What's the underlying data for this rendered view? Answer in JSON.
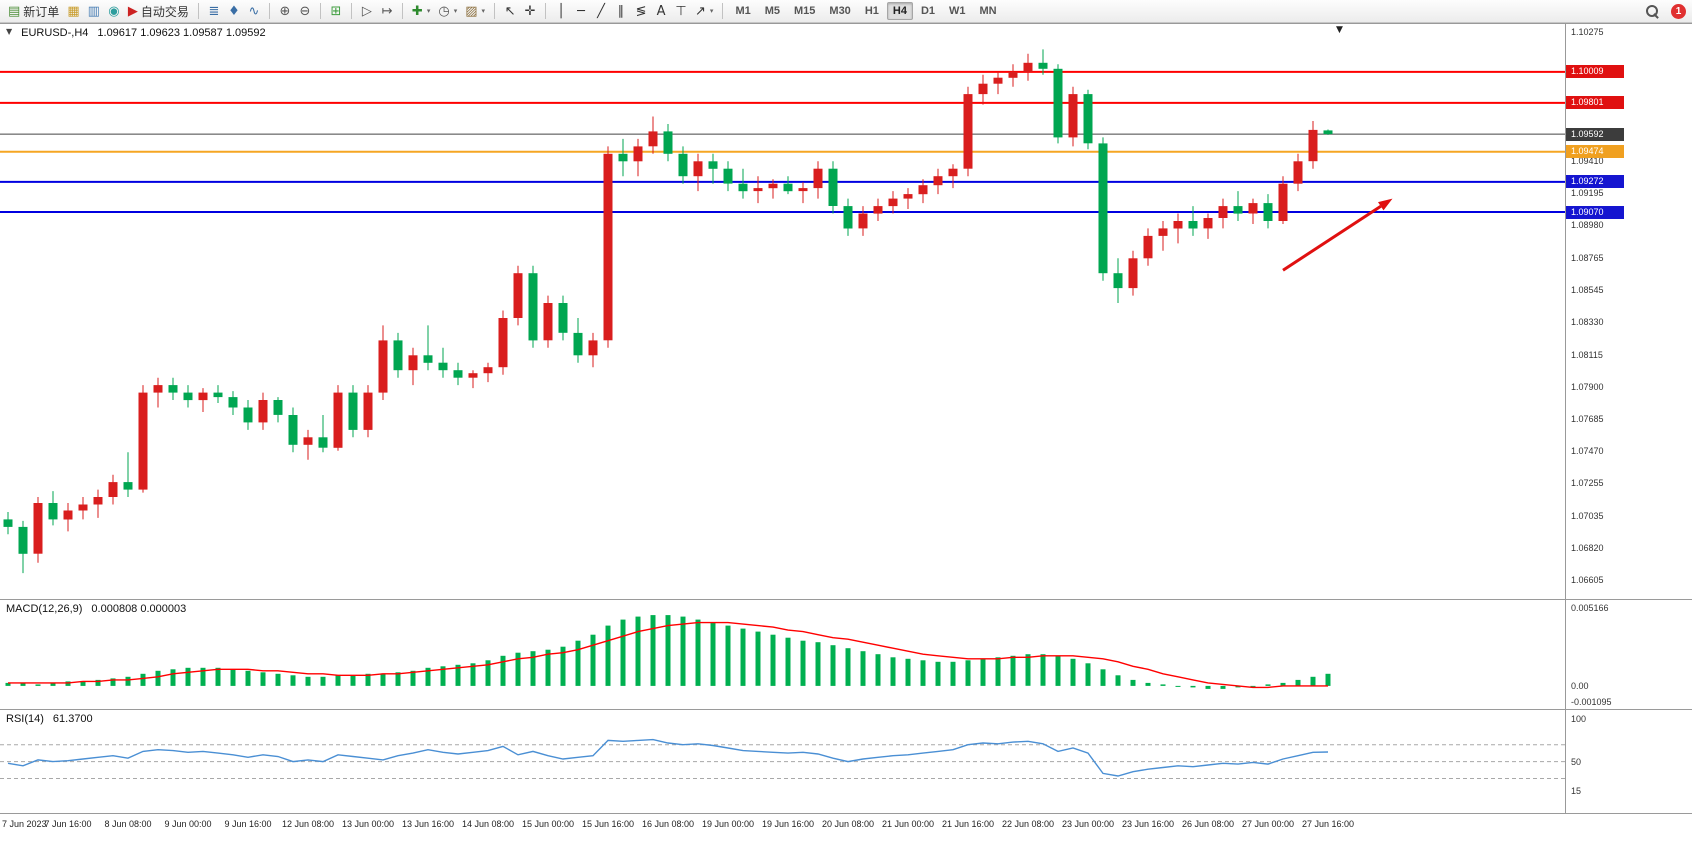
{
  "toolbar": {
    "caret_glyph": "▾",
    "notification_badge": "1",
    "timeframes": [
      "M1",
      "M5",
      "M15",
      "M30",
      "H1",
      "H4",
      "D1",
      "W1",
      "MN"
    ],
    "active_timeframe": "H4",
    "groups": [
      {
        "items": [
          {
            "name": "new-order-button",
            "glyph": "▤",
            "glyph_color": "#4e8f3a",
            "label": "新订单"
          },
          {
            "name": "chart-window-icon",
            "glyph": "▦",
            "glyph_color": "#c89b28"
          },
          {
            "name": "market-depth-icon",
            "glyph": "▥",
            "glyph_color": "#4a7fb5"
          },
          {
            "name": "community-icon",
            "glyph": "◉",
            "glyph_color": "#2e9e9e"
          },
          {
            "name": "auto-trading-button",
            "glyph": "▶",
            "glyph_color": "#cc2222",
            "label": "自动交易"
          }
        ]
      },
      {
        "items": [
          {
            "name": "bar-chart-icon",
            "glyph": "≣",
            "glyph_color": "#3a6ea5"
          },
          {
            "name": "candlestick-chart-icon",
            "glyph": "♦",
            "glyph_color": "#3a6ea5"
          },
          {
            "name": "line-chart-icon",
            "glyph": "∿",
            "glyph_color": "#3a6ea5"
          }
        ]
      },
      {
        "items": [
          {
            "name": "zoom-in-icon",
            "glyph": "⊕",
            "glyph_color": "#555555"
          },
          {
            "name": "zoom-out-icon",
            "glyph": "⊖",
            "glyph_color": "#555555"
          }
        ]
      },
      {
        "items": [
          {
            "name": "tile-windows-icon",
            "glyph": "⊞",
            "glyph_color": "#3f9e3f"
          }
        ]
      },
      {
        "items": [
          {
            "name": "auto-scroll-icon",
            "glyph": "▷",
            "glyph_color": "#555555"
          },
          {
            "name": "chart-shift-icon",
            "glyph": "↦",
            "glyph_color": "#555555"
          }
        ]
      },
      {
        "items": [
          {
            "name": "indicators-icon",
            "glyph": "✚",
            "glyph_color": "#2e8b2e",
            "caret": true
          },
          {
            "name": "periods-icon",
            "glyph": "◷",
            "glyph_color": "#555555",
            "caret": true
          },
          {
            "name": "templates-icon",
            "glyph": "▨",
            "glyph_color": "#8a6d3b",
            "caret": true
          }
        ]
      },
      {
        "items": [
          {
            "name": "cursor-icon",
            "glyph": "↖",
            "glyph_color": "#333333"
          },
          {
            "name": "crosshair-icon",
            "glyph": "✛",
            "glyph_color": "#333333"
          }
        ]
      },
      {
        "items": [
          {
            "name": "vertical-line-icon",
            "glyph": "│",
            "glyph_color": "#333333"
          },
          {
            "name": "horizontal-line-icon",
            "glyph": "─",
            "glyph_color": "#333333"
          },
          {
            "name": "trendline-icon",
            "glyph": "╱",
            "glyph_color": "#333333"
          },
          {
            "name": "channel-icon",
            "glyph": "∥",
            "glyph_color": "#333333"
          },
          {
            "name": "fibonacci-icon",
            "glyph": "≶",
            "glyph_color": "#333333"
          },
          {
            "name": "text-icon",
            "glyph": "A",
            "glyph_color": "#333333"
          },
          {
            "name": "label-icon",
            "glyph": "⊤",
            "glyph_color": "#333333"
          },
          {
            "name": "shapes-icon",
            "glyph": "↗",
            "glyph_color": "#333333",
            "caret": true
          }
        ]
      }
    ]
  },
  "chart_header": {
    "collapse_glyph": "▼",
    "symbol_text": "EURUSD-,H4",
    "ohlc_text": "1.09617 1.09623 1.09587 1.09592",
    "shift_marker": "▼"
  },
  "chart_data": {
    "type": "candlestick",
    "symbol": "EURUSD-",
    "timeframe": "H4",
    "colors": {
      "bull": "#d91e1e",
      "bear": "#00a651",
      "macd_histogram": "#00b050",
      "macd_signal": "#ff0000",
      "rsi_line": "#4a8fd4"
    },
    "price_axis": {
      "view_max": 1.1033,
      "view_min": 1.0647,
      "ticks": [
        "1.10275",
        "1.09410",
        "1.09195",
        "1.08980",
        "1.08765",
        "1.08545",
        "1.08330",
        "1.08115",
        "1.07900",
        "1.07685",
        "1.07470",
        "1.07255",
        "1.07035",
        "1.06820",
        "1.06605"
      ]
    },
    "price_tags": [
      {
        "text": "1.10009",
        "color": "#e01010"
      },
      {
        "text": "1.09801",
        "color": "#e01010"
      },
      {
        "text": "1.09592",
        "color": "#3c3c3c"
      },
      {
        "text": "1.09474",
        "color": "#f0a020"
      },
      {
        "text": "1.09272",
        "color": "#1515d0"
      },
      {
        "text": "1.09070",
        "color": "#1515d0"
      }
    ],
    "hlines": [
      {
        "price": 1.10009,
        "color": "#ff0000",
        "width": 2
      },
      {
        "price": 1.09801,
        "color": "#ff0000",
        "width": 2
      },
      {
        "price": 1.09592,
        "color": "#444444",
        "width": 1
      },
      {
        "price": 1.09474,
        "color": "#f5a623",
        "width": 2
      },
      {
        "price": 1.09272,
        "color": "#0000e0",
        "width": 2
      },
      {
        "price": 1.0907,
        "color": "#0000e0",
        "width": 2
      }
    ],
    "arrow": {
      "from_index": 85,
      "from_price": 1.0868,
      "to_index": 92.3,
      "to_price": 1.0916,
      "color": "#e01010",
      "width": 3
    },
    "x_labels": [
      "7 Jun 2023",
      "7 Jun 16:00",
      "8 Jun 08:00",
      "9 Jun 00:00",
      "9 Jun 16:00",
      "12 Jun 08:00",
      "13 Jun 00:00",
      "13 Jun 16:00",
      "14 Jun 08:00",
      "15 Jun 00:00",
      "15 Jun 16:00",
      "16 Jun 08:00",
      "19 Jun 00:00",
      "19 Jun 16:00",
      "20 Jun 08:00",
      "21 Jun 00:00",
      "21 Jun 16:00",
      "22 Jun 08:00",
      "23 Jun 00:00",
      "23 Jun 16:00",
      "26 Jun 08:00",
      "27 Jun 00:00",
      "27 Jun 16:00"
    ],
    "candles": [
      [
        1.0701,
        1.0706,
        1.0691,
        1.0696
      ],
      [
        1.0696,
        1.07,
        1.0665,
        1.0678
      ],
      [
        1.0678,
        1.0716,
        1.0672,
        1.0712
      ],
      [
        1.0712,
        1.072,
        1.0697,
        1.0701
      ],
      [
        1.0701,
        1.0712,
        1.0693,
        1.0707
      ],
      [
        1.0707,
        1.0716,
        1.0701,
        1.0711
      ],
      [
        1.0711,
        1.0721,
        1.0702,
        1.0716
      ],
      [
        1.0716,
        1.0731,
        1.0711,
        1.0726
      ],
      [
        1.0726,
        1.0746,
        1.0716,
        1.0721
      ],
      [
        1.0721,
        1.0791,
        1.0719,
        1.0786
      ],
      [
        1.0786,
        1.0796,
        1.0776,
        1.0791
      ],
      [
        1.0791,
        1.0796,
        1.0781,
        1.0786
      ],
      [
        1.0786,
        1.0791,
        1.0776,
        1.0781
      ],
      [
        1.0781,
        1.0789,
        1.0773,
        1.0786
      ],
      [
        1.0786,
        1.0791,
        1.0779,
        1.0783
      ],
      [
        1.0783,
        1.0787,
        1.0771,
        1.0776
      ],
      [
        1.0776,
        1.0781,
        1.0761,
        1.0766
      ],
      [
        1.0766,
        1.0786,
        1.0761,
        1.0781
      ],
      [
        1.0781,
        1.0783,
        1.0766,
        1.0771
      ],
      [
        1.0771,
        1.0776,
        1.0746,
        1.0751
      ],
      [
        1.0751,
        1.0761,
        1.0741,
        1.0756
      ],
      [
        1.0756,
        1.0771,
        1.0746,
        1.0749
      ],
      [
        1.0749,
        1.0791,
        1.0747,
        1.0786
      ],
      [
        1.0786,
        1.0791,
        1.0756,
        1.0761
      ],
      [
        1.0761,
        1.0791,
        1.0756,
        1.0786
      ],
      [
        1.0786,
        1.0831,
        1.0781,
        1.0821
      ],
      [
        1.0821,
        1.0826,
        1.0796,
        1.0801
      ],
      [
        1.0801,
        1.0816,
        1.0791,
        1.0811
      ],
      [
        1.0811,
        1.0831,
        1.0801,
        1.0806
      ],
      [
        1.0806,
        1.0816,
        1.0796,
        1.0801
      ],
      [
        1.0801,
        1.0806,
        1.0791,
        1.0796
      ],
      [
        1.0796,
        1.0801,
        1.0789,
        1.0799
      ],
      [
        1.0799,
        1.0806,
        1.0793,
        1.0803
      ],
      [
        1.0803,
        1.0841,
        1.0798,
        1.0836
      ],
      [
        1.0836,
        1.0871,
        1.0831,
        1.0866
      ],
      [
        1.0866,
        1.0871,
        1.0816,
        1.0821
      ],
      [
        1.0821,
        1.0851,
        1.0816,
        1.0846
      ],
      [
        1.0846,
        1.0851,
        1.0821,
        1.0826
      ],
      [
        1.0826,
        1.0836,
        1.0806,
        1.0811
      ],
      [
        1.0811,
        1.0826,
        1.0803,
        1.0821
      ],
      [
        1.0821,
        1.0951,
        1.0816,
        1.0946
      ],
      [
        1.0946,
        1.0956,
        1.0931,
        1.0941
      ],
      [
        1.0941,
        1.0956,
        1.0931,
        1.0951
      ],
      [
        1.0951,
        1.0971,
        1.0946,
        1.0961
      ],
      [
        1.0961,
        1.0966,
        1.0941,
        1.0946
      ],
      [
        1.0946,
        1.0951,
        1.0926,
        1.0931
      ],
      [
        1.0931,
        1.0946,
        1.0921,
        1.0941
      ],
      [
        1.0941,
        1.0946,
        1.0926,
        1.0936
      ],
      [
        1.0936,
        1.0941,
        1.0921,
        1.0926
      ],
      [
        1.0926,
        1.0936,
        1.0916,
        1.0921
      ],
      [
        1.0921,
        1.0931,
        1.0913,
        1.0923
      ],
      [
        1.0923,
        1.0929,
        1.0916,
        1.0926
      ],
      [
        1.0926,
        1.0931,
        1.0919,
        1.0921
      ],
      [
        1.0921,
        1.0927,
        1.0913,
        1.0923
      ],
      [
        1.0923,
        1.0941,
        1.0916,
        1.0936
      ],
      [
        1.0936,
        1.0941,
        1.0906,
        1.0911
      ],
      [
        1.0911,
        1.0916,
        1.0891,
        1.0896
      ],
      [
        1.0896,
        1.0911,
        1.0891,
        1.0906
      ],
      [
        1.0906,
        1.0916,
        1.0901,
        1.0911
      ],
      [
        1.0911,
        1.0921,
        1.0906,
        1.0916
      ],
      [
        1.0916,
        1.0923,
        1.0909,
        1.0919
      ],
      [
        1.0919,
        1.0929,
        1.0913,
        1.0925
      ],
      [
        1.0925,
        1.0936,
        1.0919,
        1.0931
      ],
      [
        1.0931,
        1.0939,
        1.0923,
        1.0936
      ],
      [
        1.0936,
        1.0991,
        1.0931,
        1.0986
      ],
      [
        1.0986,
        1.0999,
        1.0979,
        1.0993
      ],
      [
        1.0993,
        1.1001,
        1.0986,
        1.0997
      ],
      [
        1.0997,
        1.1006,
        1.0991,
        1.1001
      ],
      [
        1.1001,
        1.1013,
        1.0995,
        1.1007
      ],
      [
        1.1007,
        1.1016,
        1.0999,
        1.1003
      ],
      [
        1.1003,
        1.1006,
        1.0953,
        1.0957
      ],
      [
        1.0957,
        1.0991,
        1.0951,
        1.0986
      ],
      [
        1.0986,
        1.0989,
        1.0949,
        1.0953
      ],
      [
        1.0953,
        1.0957,
        1.0861,
        1.0866
      ],
      [
        1.0866,
        1.0876,
        1.0846,
        1.0856
      ],
      [
        1.0856,
        1.0881,
        1.0851,
        1.0876
      ],
      [
        1.0876,
        1.0896,
        1.0871,
        1.0891
      ],
      [
        1.0891,
        1.0901,
        1.0881,
        1.0896
      ],
      [
        1.0896,
        1.0906,
        1.0886,
        1.0901
      ],
      [
        1.0901,
        1.0911,
        1.0891,
        1.0896
      ],
      [
        1.0896,
        1.0906,
        1.0889,
        1.0903
      ],
      [
        1.0903,
        1.0916,
        1.0896,
        1.0911
      ],
      [
        1.0911,
        1.0921,
        1.0901,
        1.0906
      ],
      [
        1.0906,
        1.0916,
        1.0899,
        1.0913
      ],
      [
        1.0913,
        1.0919,
        1.0896,
        1.0901
      ],
      [
        1.0901,
        1.0931,
        1.0899,
        1.0926
      ],
      [
        1.0926,
        1.0946,
        1.0921,
        1.0941
      ],
      [
        1.0941,
        1.0968,
        1.0936,
        1.0962
      ],
      [
        1.09617,
        1.09623,
        1.09587,
        1.09592
      ]
    ],
    "macd": {
      "label": "MACD(12,26,9)",
      "values_text": "0.000808 0.000003",
      "axis_labels": [
        "0.005166",
        "0.00",
        "-0.001095"
      ],
      "view_max": 0.0057,
      "view_min": -0.0016,
      "histogram": [
        0.0002,
        0.0002,
        0.0001,
        0.0002,
        0.0003,
        0.0003,
        0.0004,
        0.0005,
        0.0006,
        0.0008,
        0.001,
        0.0011,
        0.0012,
        0.0012,
        0.0012,
        0.0011,
        0.001,
        0.0009,
        0.0008,
        0.0007,
        0.0006,
        0.0006,
        0.0007,
        0.0007,
        0.0008,
        0.0008,
        0.0009,
        0.001,
        0.0012,
        0.0013,
        0.0014,
        0.0015,
        0.0017,
        0.002,
        0.0022,
        0.0023,
        0.0024,
        0.0026,
        0.003,
        0.0034,
        0.004,
        0.0044,
        0.0046,
        0.0047,
        0.0047,
        0.0046,
        0.0044,
        0.0042,
        0.004,
        0.0038,
        0.0036,
        0.0034,
        0.0032,
        0.003,
        0.0029,
        0.0027,
        0.0025,
        0.0023,
        0.0021,
        0.0019,
        0.0018,
        0.0017,
        0.0016,
        0.0016,
        0.0017,
        0.0018,
        0.0019,
        0.002,
        0.0021,
        0.0021,
        0.002,
        0.0018,
        0.0015,
        0.0011,
        0.0007,
        0.0004,
        0.0002,
        0.0001,
        0.0,
        -0.0001,
        -0.0002,
        -0.0002,
        -0.0001,
        0.0,
        0.0001,
        0.0002,
        0.0004,
        0.0006,
        0.0008
      ],
      "signal": [
        0.0002,
        0.0002,
        0.0002,
        0.0002,
        0.0002,
        0.0003,
        0.0003,
        0.0004,
        0.0004,
        0.0005,
        0.0006,
        0.0008,
        0.0009,
        0.001,
        0.0011,
        0.0011,
        0.0011,
        0.001,
        0.001,
        0.0009,
        0.0008,
        0.0008,
        0.0007,
        0.0007,
        0.0007,
        0.0008,
        0.0008,
        0.0009,
        0.001,
        0.0011,
        0.0012,
        0.0013,
        0.0014,
        0.0016,
        0.0018,
        0.0019,
        0.0021,
        0.0022,
        0.0024,
        0.0027,
        0.003,
        0.0033,
        0.0036,
        0.0038,
        0.004,
        0.0041,
        0.0042,
        0.0042,
        0.0042,
        0.0041,
        0.004,
        0.0039,
        0.0037,
        0.0036,
        0.0034,
        0.0032,
        0.0031,
        0.0029,
        0.0027,
        0.0025,
        0.0023,
        0.0021,
        0.002,
        0.0019,
        0.0018,
        0.0018,
        0.0018,
        0.0019,
        0.0019,
        0.002,
        0.002,
        0.002,
        0.0019,
        0.0018,
        0.0016,
        0.0013,
        0.0011,
        0.0008,
        0.0006,
        0.0004,
        0.0002,
        0.0001,
        0.0,
        -0.0001,
        -0.0001,
        0.0,
        0.0,
        0.0,
        0.0
      ]
    },
    "rsi": {
      "label": "RSI(14)",
      "value_text": "61.3700",
      "axis_labels": [
        "100",
        "50",
        "15"
      ],
      "view_max": 111,
      "view_min": -12,
      "levels": [
        70,
        50,
        30
      ],
      "values": [
        48,
        45,
        52,
        50,
        51,
        53,
        55,
        57,
        54,
        62,
        64,
        63,
        61,
        62,
        60,
        58,
        55,
        58,
        56,
        50,
        52,
        50,
        58,
        56,
        54,
        52,
        57,
        60,
        64,
        61,
        59,
        61,
        63,
        68,
        58,
        62,
        57,
        53,
        55,
        57,
        75,
        74,
        75,
        76,
        72,
        70,
        71,
        69,
        66,
        63,
        62,
        61,
        60,
        61,
        59,
        54,
        50,
        53,
        55,
        57,
        58,
        60,
        62,
        64,
        70,
        72,
        71,
        73,
        74,
        71,
        62,
        66,
        60,
        36,
        33,
        38,
        41,
        43,
        45,
        44,
        46,
        48,
        47,
        49,
        47,
        53,
        57,
        61,
        61.37
      ]
    }
  }
}
